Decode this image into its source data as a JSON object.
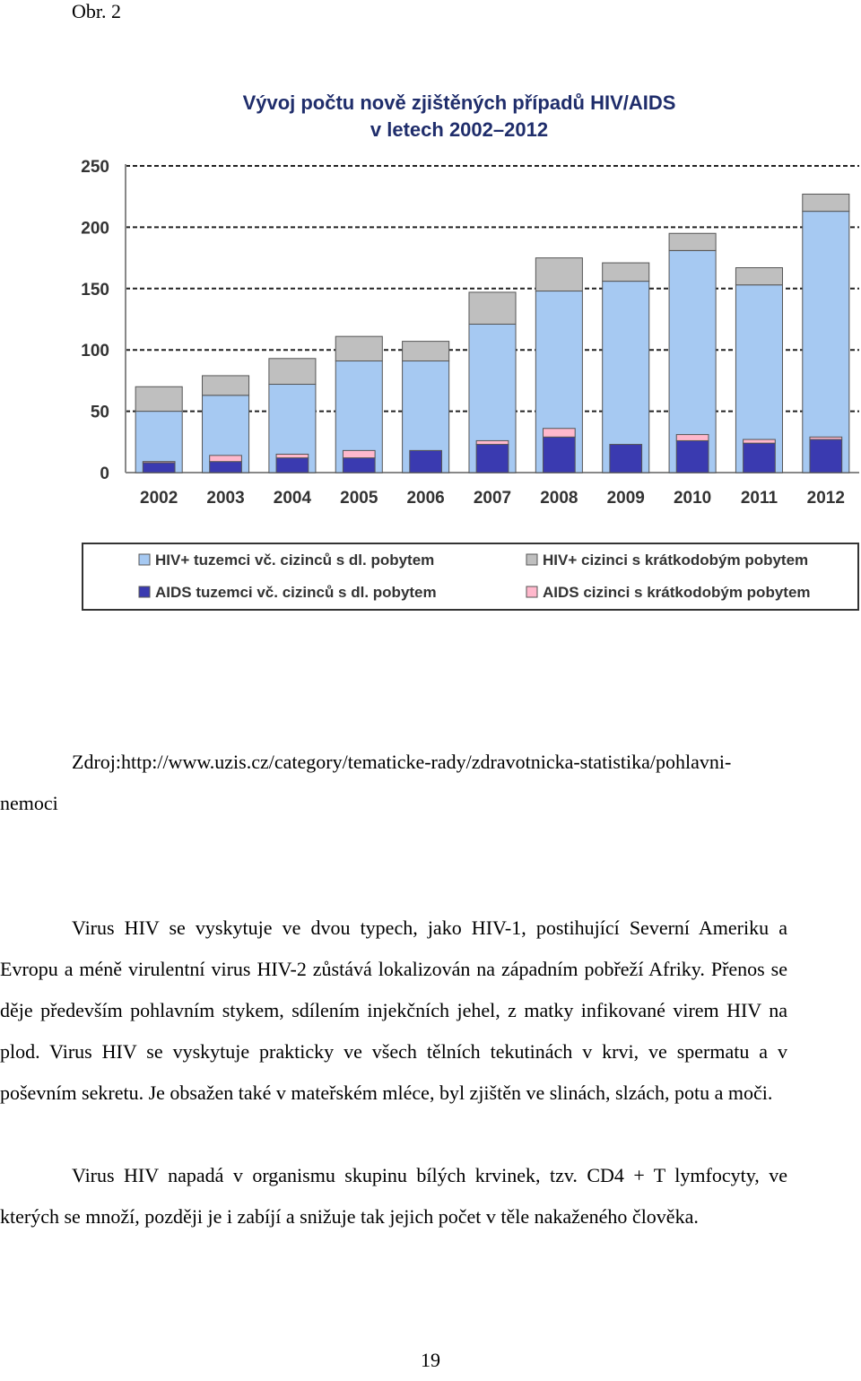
{
  "figure_label": "Obr. 2",
  "chart_data": {
    "type": "bar",
    "title": [
      "Vývoj počtu nově zjištěných případů HIV/AIDS",
      "v letech 2002–2012"
    ],
    "categories": [
      "2002",
      "2003",
      "2004",
      "2005",
      "2006",
      "2007",
      "2008",
      "2009",
      "2010",
      "2011",
      "2012"
    ],
    "series": [
      {
        "name": "HIV+ tuzemci vč. cizinců s dl. pobytem",
        "color": "#a6c9f2",
        "values": [
          50,
          63,
          72,
          91,
          91,
          121,
          148,
          156,
          181,
          153,
          213
        ]
      },
      {
        "name": "HIV+ cizinci s krátkodobým pobytem",
        "color": "#bfbfbf",
        "values": [
          20,
          16,
          21,
          20,
          16,
          26,
          27,
          15,
          14,
          14,
          14
        ]
      },
      {
        "name": "AIDS tuzemci vč. cizinců s dl. pobytem",
        "color": "#3a3ab0",
        "values": [
          8,
          9,
          12,
          12,
          18,
          23,
          29,
          23,
          26,
          24,
          27
        ]
      },
      {
        "name": "AIDS cizinci s krátkodobým pobytem",
        "color": "#ffb8cc",
        "values": [
          1,
          5,
          3,
          6,
          0,
          3,
          7,
          0,
          5,
          3,
          2
        ]
      }
    ],
    "ylim": [
      0,
      250
    ],
    "yticks": [
      0,
      50,
      100,
      150,
      200,
      250
    ],
    "grid": true
  },
  "source": "Zdroj:http://www.uzis.cz/category/tematicke-rady/zdravotnicka-statistika/pohlavni-nemoci",
  "paragraphs": [
    "Virus HIV se vyskytuje ve dvou typech, jako HIV-1, postihující Severní Ameriku a Evropu a méně virulentní virus HIV-2 zůstává lokalizován na západním pobřeží Afriky. Přenos se děje především pohlavním stykem, sdílením injekčních jehel, z matky infikované virem HIV na plod. Virus HIV se vyskytuje prakticky ve všech tělních tekutinách v krvi, ve spermatu a v poševním sekretu. Je obsažen také v mateřském mléce, byl zjištěn ve slinách, slzách, potu a moči.",
    "Virus HIV napadá v organismu skupinu bílých krvinek, tzv. CD4 + T lymfocyty, ve kterých se množí, později je i zabíjí a snižuje tak jejich počet v těle nakaženého člověka."
  ],
  "page_number": "19"
}
